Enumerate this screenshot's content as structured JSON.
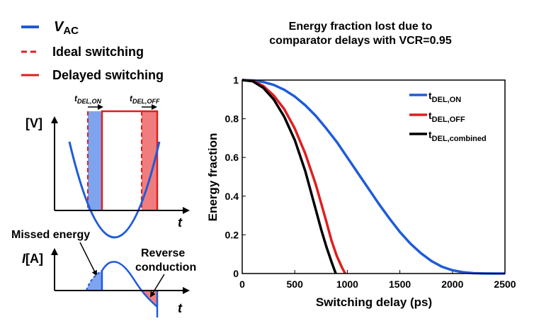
{
  "legend_left": {
    "items": [
      {
        "label": "V",
        "subscript": "AC",
        "color": "#1f5bd8",
        "style": "solid"
      },
      {
        "label": "Ideal switching",
        "color": "#e01e1e",
        "style": "dashed"
      },
      {
        "label": "Delayed switching",
        "color": "#e01e1e",
        "style": "solid"
      }
    ]
  },
  "diagram": {
    "voltage_axis_label": "[V]",
    "time_axis_label": "t",
    "current_axis_label": "I",
    "current_axis_unit": "[A]",
    "t_del_on": {
      "base": "t",
      "sub": "DEL,ON"
    },
    "t_del_off": {
      "base": "t",
      "sub": "DEL,OFF"
    },
    "missed_energy_label": "Missed energy",
    "reverse_label_line1": "Reverse",
    "reverse_label_line2": "conduction"
  },
  "chart_data": {
    "type": "line",
    "title_line1": "Energy fraction lost due to",
    "title_line2": "comparator delays with VCR=0.95",
    "xlabel": "Switching delay (ps)",
    "ylabel": "Energy fraction",
    "xlim": [
      0,
      2500
    ],
    "ylim": [
      0,
      1
    ],
    "xticks": [
      "0",
      "500",
      "1000",
      "1500",
      "2000",
      "2500"
    ],
    "yticks": [
      "0",
      "0.2",
      "0.4",
      "0.6",
      "0.8",
      "1"
    ],
    "legend_position": "top-right",
    "series": [
      {
        "name": "t",
        "sub": "DEL,ON",
        "color": "#1f5bd8",
        "x": [
          0,
          100,
          200,
          300,
          400,
          500,
          600,
          700,
          800,
          900,
          1000,
          1100,
          1200,
          1300,
          1400,
          1500,
          1600,
          1700,
          1800,
          1900,
          2000,
          2100,
          2200,
          2300,
          2400,
          2500
        ],
        "y": [
          1.0,
          0.998,
          0.99,
          0.975,
          0.95,
          0.915,
          0.87,
          0.815,
          0.75,
          0.68,
          0.6,
          0.52,
          0.44,
          0.36,
          0.285,
          0.215,
          0.155,
          0.105,
          0.065,
          0.035,
          0.017,
          0.007,
          0.002,
          0.0005,
          0.0,
          0.0
        ]
      },
      {
        "name": "t",
        "sub": "DEL,OFF",
        "color": "#e01e1e",
        "x": [
          0,
          100,
          200,
          300,
          400,
          500,
          600,
          700,
          800,
          850,
          900,
          950,
          980
        ],
        "y": [
          1.0,
          0.996,
          0.97,
          0.92,
          0.85,
          0.75,
          0.62,
          0.46,
          0.27,
          0.17,
          0.09,
          0.03,
          0.0
        ]
      },
      {
        "name": "t",
        "sub": "DEL,combined",
        "color": "#000000",
        "x": [
          0,
          100,
          200,
          300,
          400,
          500,
          600,
          700,
          750,
          800,
          850,
          890
        ],
        "y": [
          1.0,
          0.994,
          0.96,
          0.9,
          0.81,
          0.69,
          0.53,
          0.33,
          0.23,
          0.14,
          0.06,
          0.0
        ]
      }
    ]
  }
}
